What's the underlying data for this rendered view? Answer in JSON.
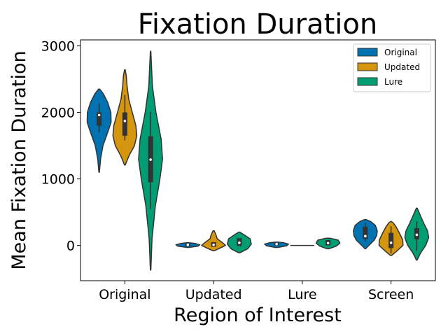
{
  "chart_data": {
    "type": "violin",
    "title": "Fixation Duration",
    "xlabel": "Region of Interest",
    "ylabel": "Mean Fixation Duration",
    "categories": [
      "Original",
      "Updated",
      "Lure",
      "Screen"
    ],
    "yticks": [
      0,
      1000,
      2000,
      3000
    ],
    "ytick_labels": [
      "0",
      "1000",
      "2000",
      "3000"
    ],
    "ylim": [
      -530,
      3090
    ],
    "legend_position": "top-right",
    "series": [
      {
        "name": "Original",
        "color": "#0072b2",
        "violins": [
          {
            "min": 1100,
            "max": 2350,
            "q1": 1800,
            "median": 1960,
            "q3": 2000,
            "whisker_low": 1700,
            "whisker_high": 2130,
            "profile": [
              [
                1100,
                0.02
              ],
              [
                1300,
                0.12
              ],
              [
                1500,
                0.32
              ],
              [
                1700,
                0.72
              ],
              [
                1850,
                1.0
              ],
              [
                2000,
                0.98
              ],
              [
                2150,
                0.72
              ],
              [
                2280,
                0.35
              ],
              [
                2350,
                0.05
              ]
            ]
          },
          {
            "min": -30,
            "max": 40,
            "median": 10,
            "q1": -10,
            "q3": 25,
            "profile": [
              [
                -30,
                0.1
              ],
              [
                -10,
                0.85
              ],
              [
                10,
                1.0
              ],
              [
                30,
                0.6
              ],
              [
                40,
                0.1
              ]
            ]
          },
          {
            "min": -30,
            "max": 50,
            "median": 20,
            "q1": 0,
            "q3": 35,
            "profile": [
              [
                -30,
                0.1
              ],
              [
                -5,
                0.85
              ],
              [
                20,
                1.0
              ],
              [
                40,
                0.6
              ],
              [
                50,
                0.1
              ]
            ]
          },
          {
            "min": -50,
            "max": 390,
            "q1": 100,
            "median": 140,
            "q3": 280,
            "whisker_low": 60,
            "whisker_high": 340,
            "profile": [
              [
                -50,
                0.03
              ],
              [
                0,
                0.3
              ],
              [
                80,
                0.75
              ],
              [
                150,
                0.95
              ],
              [
                220,
                1.0
              ],
              [
                300,
                0.85
              ],
              [
                360,
                0.45
              ],
              [
                390,
                0.05
              ]
            ]
          }
        ]
      },
      {
        "name": "Updated",
        "color": "#d5950f",
        "violins": [
          {
            "min": 1210,
            "max": 2640,
            "q1": 1650,
            "median": 1870,
            "q3": 2000,
            "whisker_low": 1580,
            "whisker_high": 2260,
            "profile": [
              [
                1210,
                0.03
              ],
              [
                1350,
                0.35
              ],
              [
                1500,
                0.8
              ],
              [
                1650,
                1.0
              ],
              [
                1800,
                0.92
              ],
              [
                2000,
                0.62
              ],
              [
                2200,
                0.32
              ],
              [
                2400,
                0.18
              ],
              [
                2550,
                0.12
              ],
              [
                2640,
                0.03
              ]
            ]
          },
          {
            "min": -80,
            "max": 220,
            "median": 10,
            "q1": -20,
            "q3": 50,
            "profile": [
              [
                -80,
                0.05
              ],
              [
                -40,
                0.55
              ],
              [
                0,
                1.0
              ],
              [
                40,
                0.75
              ],
              [
                100,
                0.3
              ],
              [
                160,
                0.2
              ],
              [
                220,
                0.05
              ]
            ]
          },
          {
            "min": 0,
            "max": 0,
            "median": 0,
            "q1": 0,
            "q3": 0,
            "profile": [
              [
                -5,
                1.0
              ],
              [
                5,
                1.0
              ]
            ]
          },
          {
            "min": -150,
            "max": 360,
            "q1": -40,
            "median": 40,
            "q3": 190,
            "whisker_low": -120,
            "whisker_high": 290,
            "profile": [
              [
                -150,
                0.05
              ],
              [
                -90,
                0.45
              ],
              [
                0,
                1.0
              ],
              [
                80,
                0.98
              ],
              [
                180,
                0.72
              ],
              [
                280,
                0.42
              ],
              [
                340,
                0.18
              ],
              [
                360,
                0.03
              ]
            ]
          }
        ]
      },
      {
        "name": "Lure",
        "color": "#029e73",
        "violins": [
          {
            "min": -370,
            "max": 2920,
            "q1": 950,
            "median": 1290,
            "q3": 1640,
            "whisker_low": 550,
            "whisker_high": 2010,
            "profile": [
              [
                -370,
                0.02
              ],
              [
                100,
                0.12
              ],
              [
                600,
                0.4
              ],
              [
                1000,
                0.78
              ],
              [
                1300,
                1.0
              ],
              [
                1600,
                0.88
              ],
              [
                2000,
                0.45
              ],
              [
                2400,
                0.15
              ],
              [
                2920,
                0.02
              ]
            ]
          },
          {
            "min": -110,
            "max": 200,
            "median": 40,
            "q1": -10,
            "q3": 110,
            "profile": [
              [
                -110,
                0.05
              ],
              [
                -50,
                0.7
              ],
              [
                20,
                1.0
              ],
              [
                100,
                0.9
              ],
              [
                160,
                0.4
              ],
              [
                200,
                0.05
              ]
            ]
          },
          {
            "min": -50,
            "max": 110,
            "median": 35,
            "q1": 0,
            "q3": 80,
            "profile": [
              [
                -50,
                0.08
              ],
              [
                -10,
                0.7
              ],
              [
                35,
                1.0
              ],
              [
                80,
                0.85
              ],
              [
                110,
                0.15
              ]
            ]
          },
          {
            "min": -220,
            "max": 560,
            "q1": 90,
            "median": 160,
            "q3": 260,
            "whisker_low": -80,
            "whisker_high": 360,
            "profile": [
              [
                -220,
                0.03
              ],
              [
                -120,
                0.3
              ],
              [
                0,
                0.75
              ],
              [
                120,
                1.0
              ],
              [
                220,
                0.9
              ],
              [
                330,
                0.6
              ],
              [
                450,
                0.3
              ],
              [
                560,
                0.04
              ]
            ]
          }
        ]
      }
    ]
  }
}
